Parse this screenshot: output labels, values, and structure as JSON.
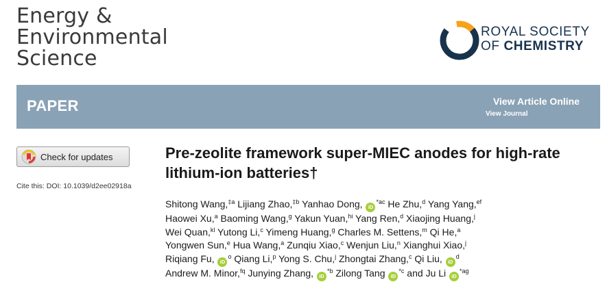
{
  "journal": {
    "line1": "Energy &",
    "line2": "Environmental",
    "line3": "Science"
  },
  "publisher": {
    "line1": "ROYAL SOCIETY",
    "line2_prefix": "OF ",
    "line2_bold": "CHEMISTRY"
  },
  "banner": {
    "article_type": "PAPER",
    "view_article": "View Article Online",
    "view_journal": "View Journal"
  },
  "check_updates": {
    "label": "Check for updates"
  },
  "cite": {
    "text": "Cite this: DOI: 10.1039/d2ee02918a"
  },
  "title": {
    "text": "Pre-zeolite framework super-MIEC anodes for high-rate lithium-ion batteries†"
  },
  "orcid_label": "iD",
  "author_lines": [
    [
      {
        "name": "Shitong Wang,",
        "sup": "‡a"
      },
      {
        "name": "Lijiang Zhao,",
        "sup": "‡b"
      },
      {
        "name": "Yanhao Dong,",
        "orcid": true,
        "sup": "*ac"
      },
      {
        "name": "He Zhu,",
        "sup": "d"
      },
      {
        "name": "Yang Yang,",
        "sup": "ef"
      }
    ],
    [
      {
        "name": "Haowei Xu,",
        "sup": "a"
      },
      {
        "name": "Baoming Wang,",
        "sup": "g"
      },
      {
        "name": "Yakun Yuan,",
        "sup": "hi"
      },
      {
        "name": "Yang Ren,",
        "sup": "d"
      },
      {
        "name": "Xiaojing Huang,",
        "sup": "j"
      }
    ],
    [
      {
        "name": "Wei Quan,",
        "sup": "kl"
      },
      {
        "name": "Yutong Li,",
        "sup": "c"
      },
      {
        "name": "Yimeng Huang,",
        "sup": "g"
      },
      {
        "name": "Charles M. Settens,",
        "sup": "m"
      },
      {
        "name": "Qi He,",
        "sup": "a"
      }
    ],
    [
      {
        "name": "Yongwen Sun,",
        "sup": "e"
      },
      {
        "name": "Hua Wang,",
        "sup": "a"
      },
      {
        "name": "Zunqiu Xiao,",
        "sup": "c"
      },
      {
        "name": "Wenjun Liu,",
        "sup": "n"
      },
      {
        "name": "Xianghui Xiao,",
        "sup": "j"
      }
    ],
    [
      {
        "name": "Riqiang Fu,",
        "orcid": true,
        "sup": "o"
      },
      {
        "name": "Qiang Li,",
        "sup": "p"
      },
      {
        "name": "Yong S. Chu,",
        "sup": "j"
      },
      {
        "name": "Zhongtai Zhang,",
        "sup": "c"
      },
      {
        "name": "Qi Liu,",
        "orcid": true,
        "sup": "d"
      }
    ],
    [
      {
        "name": "Andrew M. Minor,",
        "sup": "fq"
      },
      {
        "name": "Junying Zhang,",
        "orcid": true,
        "sup": "*b"
      },
      {
        "name": "Zilong Tang",
        "orcid": true,
        "sup": "*c",
        "suffix": " and"
      },
      {
        "name": "Ju Li",
        "orcid": true,
        "sup": "*ag"
      }
    ]
  ]
}
